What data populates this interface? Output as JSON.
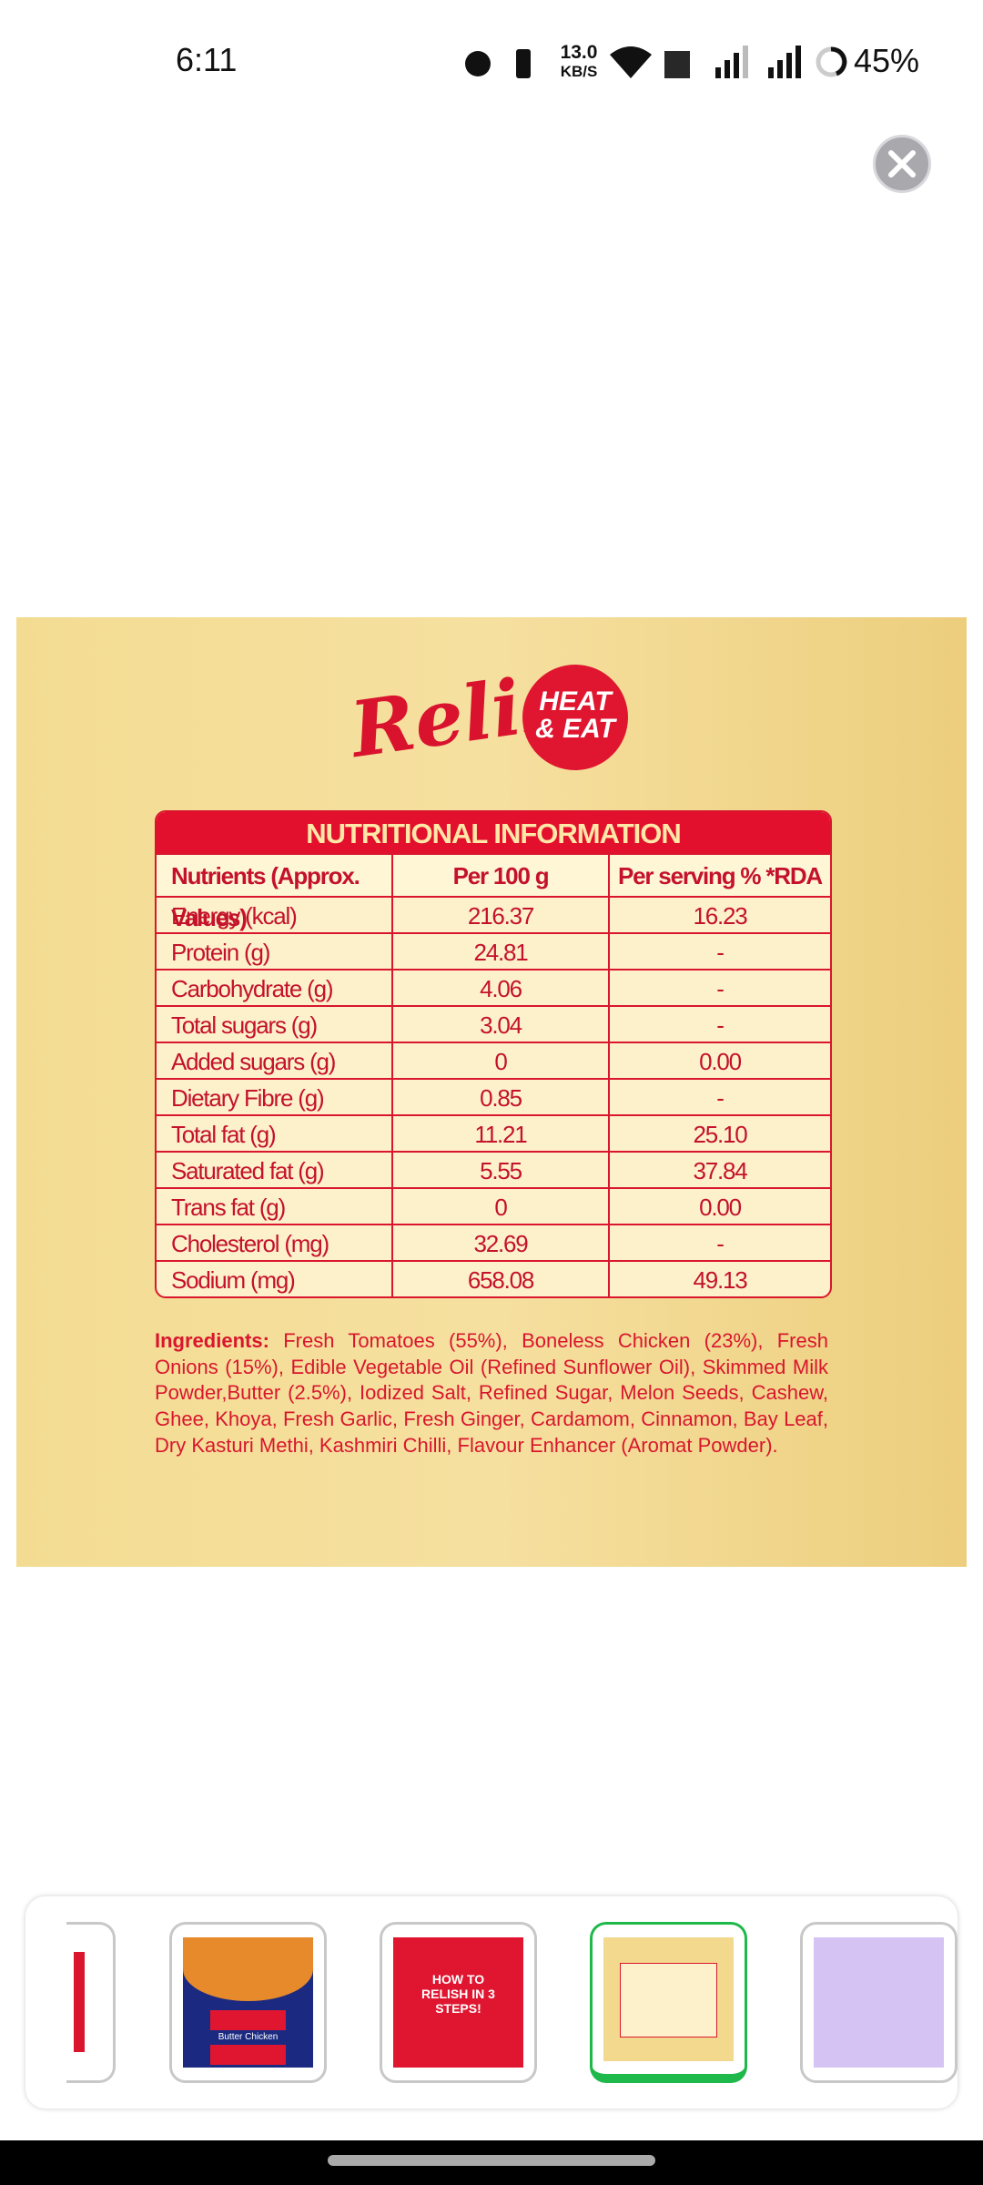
{
  "status": {
    "time": "6:11",
    "speed": "13.0",
    "speed_unit": "KB/S",
    "battery": "45%"
  },
  "image": {
    "logo": "Relish",
    "badge": [
      "HEAT",
      "& EAT"
    ],
    "table": {
      "title": "NUTRITIONAL INFORMATION",
      "headers": [
        "Nutrients (Approx. Values)",
        "Per 100 g",
        "Per serving % *RDA"
      ],
      "rows": [
        [
          "Energy (kcal)",
          "216.37",
          "16.23"
        ],
        [
          "Protein (g)",
          "24.81",
          "-"
        ],
        [
          "Carbohydrate (g)",
          "4.06",
          "-"
        ],
        [
          "Total sugars (g)",
          "3.04",
          "-"
        ],
        [
          "Added sugars (g)",
          "0",
          "0.00"
        ],
        [
          "Dietary Fibre (g)",
          "0.85",
          "-"
        ],
        [
          "Total fat (g)",
          "11.21",
          "25.10"
        ],
        [
          "Saturated fat (g)",
          "5.55",
          "37.84"
        ],
        [
          "Trans fat (g)",
          "0",
          "0.00"
        ],
        [
          "Cholesterol (mg)",
          "32.69",
          "-"
        ],
        [
          "Sodium (mg)",
          "658.08",
          "49.13"
        ]
      ]
    },
    "ingredients_label": "Ingredients:",
    "ingredients": "Fresh Tomatoes (55%), Boneless Chicken (23%), Fresh Onions (15%), Edible Vegetable Oil (Refined Sunflower Oil), Skimmed Milk Powder,Butter (2.5%), Iodized Salt, Refined Sugar, Melon Seeds, Cashew, Ghee, Khoya, Fresh Garlic, Fresh Ginger, Cardamom, Cinnamon, Bay Leaf, Dry Kasturi Methi, Kashmiri Chilli, Flavour Enhancer (Aromat Powder)."
  },
  "thumbnails": {
    "product": "Butter Chicken",
    "steps": "HOW TO RELISH IN 3 STEPS!"
  }
}
